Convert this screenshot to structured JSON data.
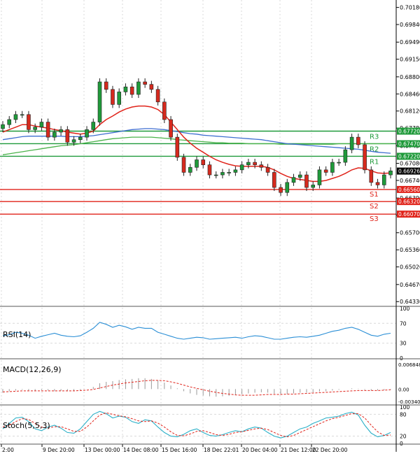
{
  "colors": {
    "bull": "#1f9a3a",
    "bear": "#d62a1e",
    "resistance": "#1f9a3a",
    "support": "#e0231a",
    "ma_fast": "#e0231a",
    "ma_mid": "#3f6fd0",
    "ma_slow": "#4bb34b",
    "rsi": "#2b8fd6",
    "macd_hist": "#9a9a9a",
    "macd_signal": "#e0231a",
    "stoch_k": "#2bb0c8",
    "stoch_d": "#e0231a",
    "grid": "#d9d9d9",
    "axis": "#000000"
  },
  "chart_data": [
    {
      "type": "candlestick",
      "panel": "price",
      "y_range": [
        0.6425,
        0.703
      ],
      "y_ticks": [
        "0.70180",
        "0.69840",
        "0.69490",
        "0.69150",
        "0.68800",
        "0.68460",
        "0.68120",
        "0.67780",
        "0.67430",
        "0.67080",
        "0.66740",
        "0.66390",
        "0.66050",
        "0.65700",
        "0.65360",
        "0.65020",
        "0.64670",
        "0.64330"
      ],
      "x_labels": [
        "2:00",
        "9 Dec 20:00",
        "13 Dec 00:00",
        "14 Dec 08:00",
        "15 Dec 16:00",
        "18 Dec 22:01",
        "20 Dec 04:00",
        "21 Dec 12:00",
        "22 Dec 20:00"
      ],
      "last_price": "0.66926",
      "levels": [
        {
          "name": "R3",
          "value": 0.6772,
          "label": "0.67720",
          "kind": "resistance"
        },
        {
          "name": "R2",
          "value": 0.6747,
          "label": "0.67470",
          "kind": "resistance"
        },
        {
          "name": "R1",
          "value": 0.6722,
          "label": "0.67220",
          "kind": "resistance"
        },
        {
          "name": "S1",
          "value": 0.6656,
          "label": "0.66560",
          "kind": "support"
        },
        {
          "name": "S2",
          "value": 0.6632,
          "label": "0.66320",
          "kind": "support"
        },
        {
          "name": "S3",
          "value": 0.6607,
          "label": "0.66070",
          "kind": "support"
        }
      ],
      "closes": [
        0.6785,
        0.6795,
        0.6805,
        0.6805,
        0.6775,
        0.678,
        0.679,
        0.676,
        0.677,
        0.6775,
        0.675,
        0.6755,
        0.676,
        0.6775,
        0.679,
        0.687,
        0.6855,
        0.6825,
        0.685,
        0.686,
        0.6845,
        0.687,
        0.6865,
        0.6855,
        0.683,
        0.6795,
        0.676,
        0.672,
        0.669,
        0.67,
        0.6715,
        0.6705,
        0.6685,
        0.6685,
        0.669,
        0.669,
        0.6695,
        0.6705,
        0.671,
        0.6705,
        0.67,
        0.669,
        0.666,
        0.665,
        0.667,
        0.668,
        0.6685,
        0.666,
        0.6665,
        0.6695,
        0.669,
        0.671,
        0.671,
        0.6735,
        0.676,
        0.6745,
        0.6695,
        0.667,
        0.6665,
        0.6685,
        0.6693
      ],
      "ma_fast": [
        0.677,
        0.6775,
        0.678,
        0.6785,
        0.6785,
        0.6782,
        0.678,
        0.6778,
        0.6775,
        0.6773,
        0.677,
        0.6768,
        0.6766,
        0.6768,
        0.6772,
        0.6785,
        0.6795,
        0.6802,
        0.681,
        0.6816,
        0.682,
        0.6822,
        0.6822,
        0.682,
        0.6815,
        0.6805,
        0.679,
        0.6775,
        0.676,
        0.6748,
        0.6738,
        0.673,
        0.6722,
        0.6715,
        0.671,
        0.6706,
        0.6703,
        0.6702,
        0.6702,
        0.6702,
        0.6702,
        0.67,
        0.6695,
        0.6688,
        0.6682,
        0.6678,
        0.6676,
        0.6674,
        0.6672,
        0.6672,
        0.6674,
        0.6678,
        0.6682,
        0.6688,
        0.6695,
        0.6699,
        0.6698,
        0.6693,
        0.6689,
        0.6688,
        0.6689
      ],
      "ma_mid": [
        0.6755,
        0.6757,
        0.6759,
        0.6761,
        0.6762,
        0.6762,
        0.6762,
        0.6762,
        0.6762,
        0.6762,
        0.6761,
        0.6761,
        0.6761,
        0.6762,
        0.6763,
        0.6765,
        0.6767,
        0.6769,
        0.6771,
        0.6773,
        0.6775,
        0.6776,
        0.6777,
        0.6777,
        0.6776,
        0.6775,
        0.6773,
        0.6771,
        0.6769,
        0.6767,
        0.6766,
        0.6764,
        0.6763,
        0.6762,
        0.6761,
        0.676,
        0.6759,
        0.6758,
        0.6757,
        0.6756,
        0.6755,
        0.6753,
        0.6751,
        0.6749,
        0.6747,
        0.6746,
        0.6745,
        0.6744,
        0.6743,
        0.6742,
        0.6741,
        0.674,
        0.6739,
        0.6738,
        0.6737,
        0.6736,
        0.6734,
        0.6732,
        0.673,
        0.6729,
        0.6728
      ],
      "ma_slow": [
        0.6725,
        0.6727,
        0.6729,
        0.6731,
        0.6733,
        0.6735,
        0.6737,
        0.6739,
        0.6741,
        0.6743,
        0.6744,
        0.6745,
        0.6747,
        0.6749,
        0.6751,
        0.6753,
        0.6755,
        0.6757,
        0.6758,
        0.6759,
        0.676,
        0.676,
        0.676,
        0.676,
        0.6759,
        0.6758,
        0.6757,
        0.6755,
        0.6754,
        0.6753,
        0.6752,
        0.6751,
        0.675,
        0.6749,
        0.6749,
        0.6748,
        0.6748,
        0.6748,
        0.6747,
        0.6747,
        0.6747,
        0.6747,
        0.6747,
        0.6746,
        0.6746,
        0.6746,
        0.6746,
        0.6746,
        0.6746,
        0.6746,
        0.6746,
        0.6746,
        0.6747,
        0.6747,
        0.6747,
        0.6747,
        0.6747,
        0.6747,
        0.6747,
        0.6747,
        0.6747
      ]
    },
    {
      "type": "line",
      "panel": "rsi",
      "title": "RSI(14)",
      "y_range": [
        0,
        100
      ],
      "y_ticks": [
        "100",
        "70",
        "30",
        "0"
      ],
      "values": [
        45,
        47,
        52,
        50,
        46,
        40,
        44,
        47,
        50,
        46,
        44,
        43,
        45,
        52,
        60,
        72,
        68,
        62,
        66,
        63,
        58,
        62,
        60,
        60,
        52,
        48,
        44,
        40,
        38,
        40,
        42,
        41,
        38,
        39,
        40,
        41,
        42,
        40,
        43,
        45,
        44,
        41,
        38,
        38,
        40,
        42,
        43,
        42,
        44,
        46,
        50,
        54,
        56,
        60,
        62,
        58,
        52,
        46,
        44,
        48,
        50
      ]
    },
    {
      "type": "bar",
      "panel": "macd",
      "title": "MACD(12,26,9)",
      "y_range": [
        -0.0042,
        0.0078
      ],
      "y_ticks": [
        "0.006848",
        "0.00",
        "-0.003404"
      ],
      "values": [
        -0.001,
        -0.0006,
        -0.0004,
        -0.0002,
        -0.0004,
        -0.0005,
        -0.0003,
        -0.0004,
        -0.0006,
        -0.0005,
        -0.0006,
        -0.0005,
        -0.0003,
        0.0,
        0.0006,
        0.0016,
        0.002,
        0.0022,
        0.0025,
        0.0027,
        0.0028,
        0.003,
        0.003,
        0.0028,
        0.0024,
        0.0018,
        0.001,
        0.0002,
        -0.0006,
        -0.0012,
        -0.0016,
        -0.0018,
        -0.002,
        -0.0021,
        -0.002,
        -0.0019,
        -0.0017,
        -0.0015,
        -0.0012,
        -0.001,
        -0.0009,
        -0.001,
        -0.0013,
        -0.0015,
        -0.0014,
        -0.0012,
        -0.001,
        -0.001,
        -0.0009,
        -0.0007,
        -0.0006,
        -0.0004,
        -0.0002,
        0.0,
        0.0002,
        0.0001,
        -0.0002,
        -0.0004,
        -0.0004,
        -0.0003,
        -0.0002
      ],
      "signal": [
        -0.0008,
        -0.0007,
        -0.0006,
        -0.0005,
        -0.0005,
        -0.0005,
        -0.0005,
        -0.0005,
        -0.0005,
        -0.0005,
        -0.0005,
        -0.0005,
        -0.0004,
        -0.0003,
        -0.0001,
        0.0003,
        0.0007,
        0.0011,
        0.0014,
        0.0017,
        0.0019,
        0.0021,
        0.0023,
        0.0024,
        0.0024,
        0.0023,
        0.002,
        0.0016,
        0.0011,
        0.0006,
        0.0002,
        -0.0002,
        -0.0006,
        -0.0009,
        -0.0012,
        -0.0014,
        -0.0016,
        -0.0017,
        -0.0017,
        -0.0017,
        -0.0016,
        -0.0015,
        -0.0015,
        -0.0015,
        -0.0014,
        -0.0014,
        -0.0013,
        -0.0012,
        -0.0011,
        -0.001,
        -0.0009,
        -0.0008,
        -0.0007,
        -0.0006,
        -0.0005,
        -0.0004,
        -0.0004,
        -0.0004,
        -0.0004,
        -0.0003,
        -0.0002
      ]
    },
    {
      "type": "line",
      "panel": "stoch",
      "title": "Stoch(5,5,3)",
      "y_range": [
        0,
        100
      ],
      "y_ticks": [
        "100",
        "80",
        "20",
        "0"
      ],
      "k": [
        40,
        55,
        70,
        72,
        60,
        40,
        35,
        45,
        50,
        42,
        30,
        28,
        40,
        60,
        80,
        88,
        82,
        70,
        75,
        72,
        60,
        55,
        65,
        62,
        45,
        30,
        20,
        18,
        25,
        35,
        40,
        30,
        22,
        20,
        24,
        30,
        35,
        32,
        40,
        45,
        42,
        30,
        20,
        15,
        20,
        30,
        40,
        45,
        55,
        62,
        70,
        72,
        75,
        82,
        86,
        78,
        50,
        28,
        18,
        22,
        30
      ],
      "d": [
        45,
        50,
        60,
        68,
        66,
        55,
        45,
        42,
        46,
        46,
        40,
        33,
        33,
        45,
        62,
        78,
        84,
        80,
        76,
        73,
        68,
        62,
        60,
        62,
        56,
        45,
        32,
        22,
        21,
        26,
        33,
        35,
        30,
        24,
        22,
        25,
        30,
        32,
        36,
        40,
        42,
        38,
        30,
        22,
        18,
        22,
        30,
        38,
        46,
        54,
        62,
        68,
        72,
        77,
        82,
        82,
        70,
        50,
        32,
        22,
        23
      ]
    }
  ]
}
